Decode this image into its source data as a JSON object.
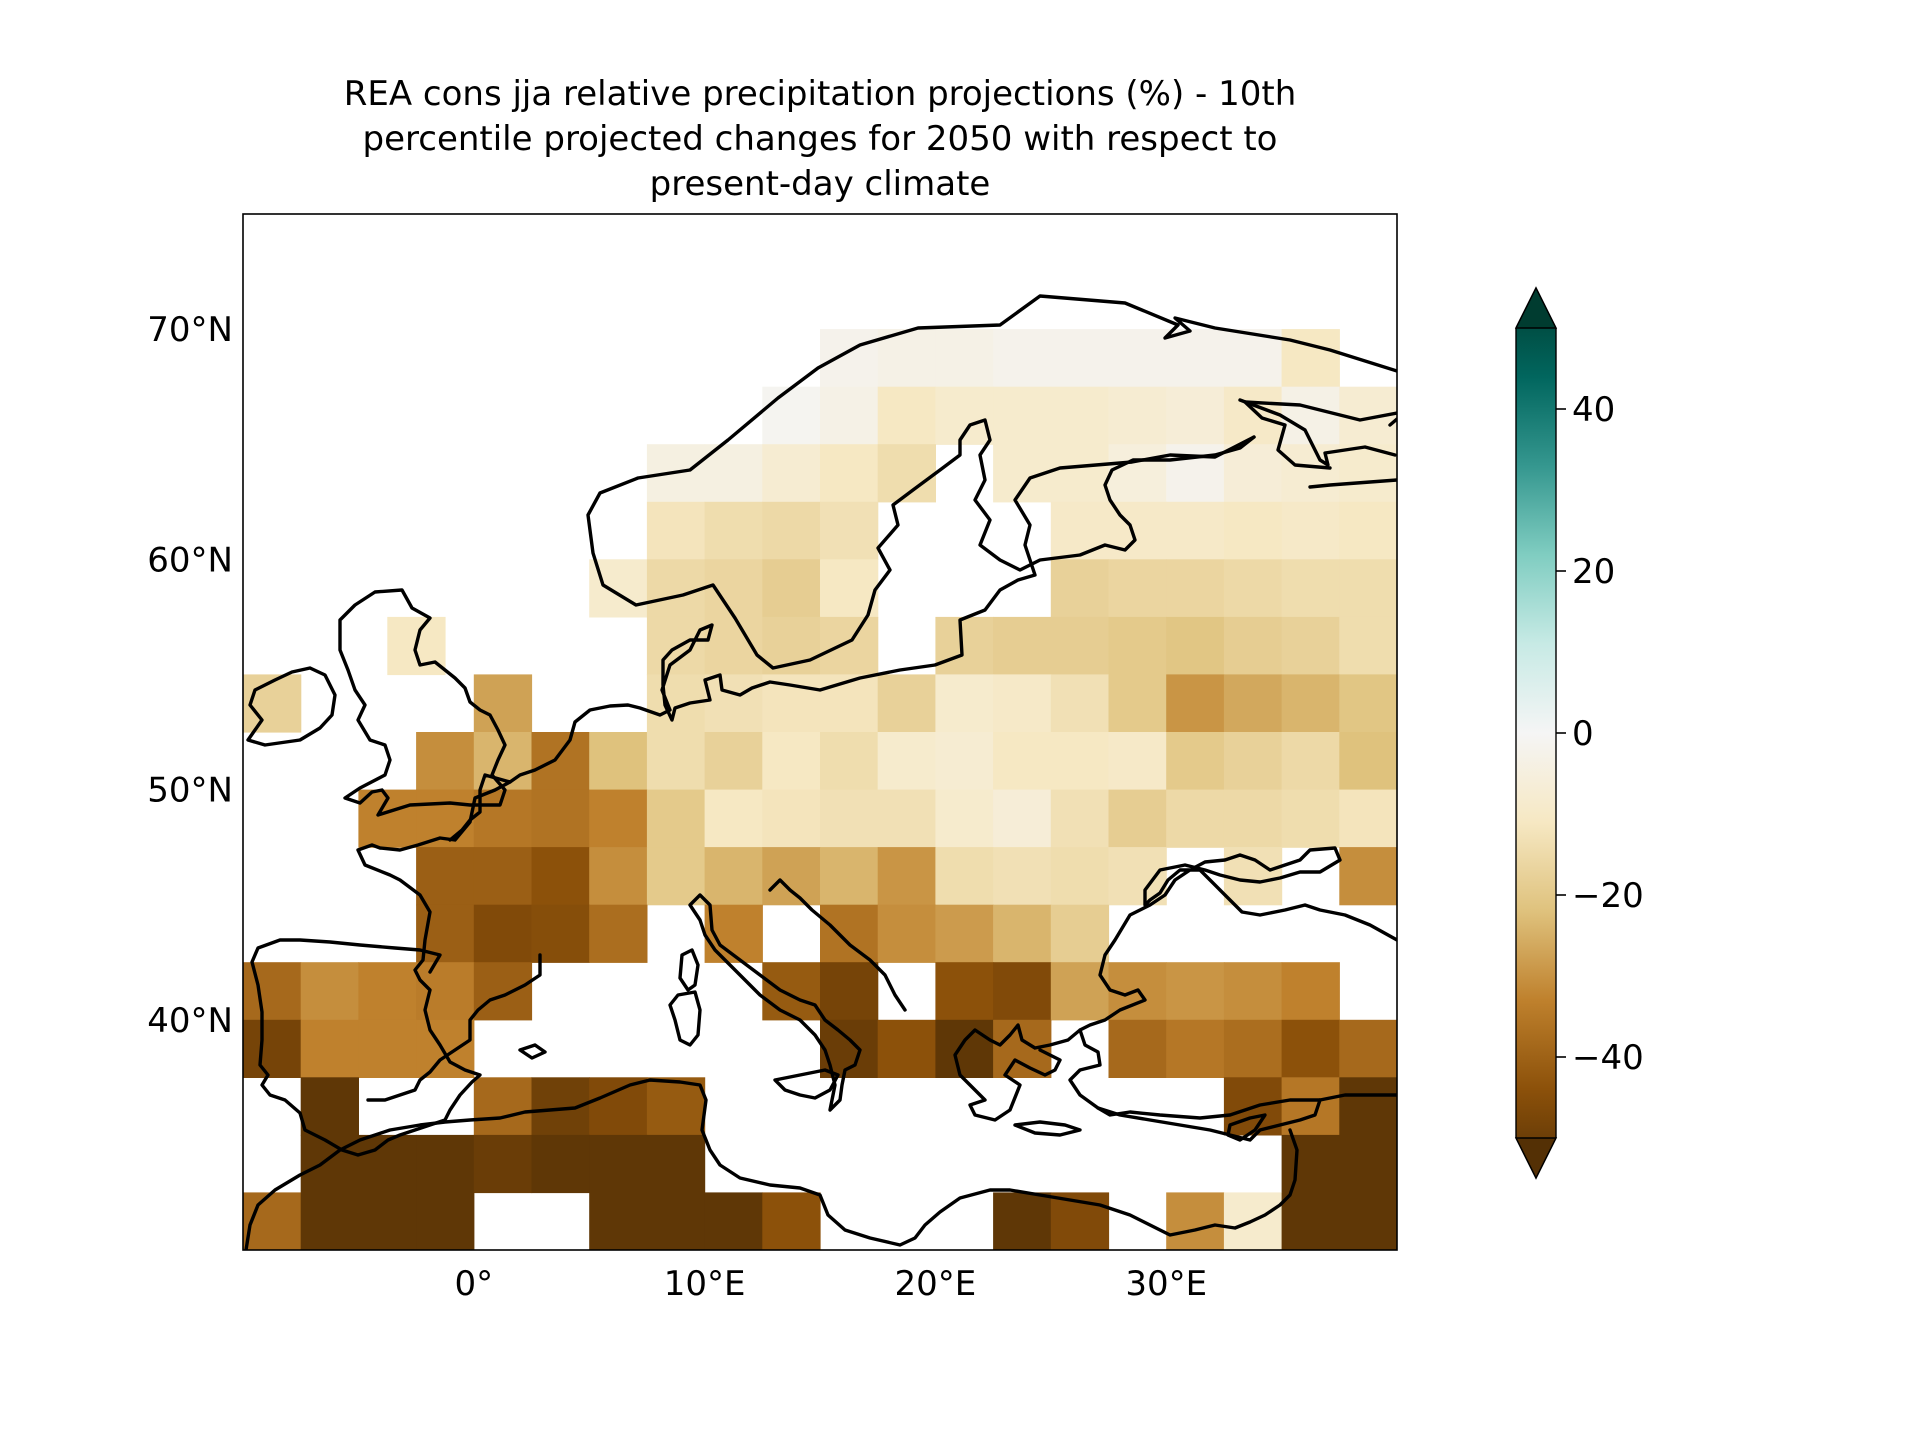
{
  "title": {
    "line1": "REA cons jja relative precipitation projections (%) - 10th",
    "line2": "percentile projected changes for 2050 with respect to",
    "line3": "present-day climate"
  },
  "chart_data": {
    "type": "heatmap",
    "map_extent": {
      "lon": [
        -10,
        40
      ],
      "lat": [
        30,
        75
      ]
    },
    "cell_size_deg": [
      2.5,
      2.5
    ],
    "xticks": [
      {
        "value": 0,
        "label": "0°"
      },
      {
        "value": 10,
        "label": "10°E"
      },
      {
        "value": 20,
        "label": "20°E"
      },
      {
        "value": 30,
        "label": "30°E"
      }
    ],
    "yticks": [
      {
        "value": 40,
        "label": "40°N"
      },
      {
        "value": 50,
        "label": "50°N"
      },
      {
        "value": 60,
        "label": "60°N"
      },
      {
        "value": 70,
        "label": "70°N"
      }
    ],
    "colorbar": {
      "range": [
        -50,
        50
      ],
      "extend": "both",
      "colormap": "BrBG",
      "ticks": [
        {
          "value": 40,
          "label": "40"
        },
        {
          "value": 20,
          "label": "20"
        },
        {
          "value": 0,
          "label": "0"
        },
        {
          "value": -20,
          "label": "−20"
        },
        {
          "value": -40,
          "label": "−40"
        }
      ]
    },
    "note": "Cells listed by south edge latitude; each row gives [lon_west, value%] pairs (estimated).",
    "cells": [
      {
        "lat": 67.5,
        "lon_values": [
          [
            15,
            -2
          ],
          [
            17.5,
            -3
          ],
          [
            20,
            -3
          ],
          [
            22.5,
            -2
          ],
          [
            25,
            -2
          ],
          [
            27.5,
            -2
          ],
          [
            30,
            -2
          ],
          [
            32.5,
            -2
          ],
          [
            35,
            -10
          ]
        ]
      },
      {
        "lat": 65,
        "lon_values": [
          [
            12.5,
            -1
          ],
          [
            15,
            -3
          ],
          [
            17.5,
            -10
          ],
          [
            20,
            -8
          ],
          [
            22.5,
            -8
          ],
          [
            25,
            -8
          ],
          [
            27.5,
            -7
          ],
          [
            30,
            -6
          ],
          [
            32.5,
            -9
          ],
          [
            35,
            -3
          ],
          [
            37.5,
            -7
          ]
        ]
      },
      {
        "lat": 62.5,
        "lon_values": [
          [
            7.5,
            -4
          ],
          [
            10,
            -4
          ],
          [
            12.5,
            -7
          ],
          [
            15,
            -10
          ],
          [
            17.5,
            -13
          ],
          [
            22.5,
            -8
          ],
          [
            25,
            -8
          ],
          [
            27.5,
            -5
          ],
          [
            30,
            -2
          ],
          [
            32.5,
            -6
          ],
          [
            35,
            -7
          ],
          [
            37.5,
            -8
          ]
        ]
      },
      {
        "lat": 60,
        "lon_values": [
          [
            7.5,
            -11
          ],
          [
            10,
            -13
          ],
          [
            12.5,
            -14
          ],
          [
            15,
            -12
          ],
          [
            25,
            -9
          ],
          [
            27.5,
            -9
          ],
          [
            30,
            -9
          ],
          [
            32.5,
            -10
          ],
          [
            35,
            -9
          ],
          [
            37.5,
            -10
          ]
        ]
      },
      {
        "lat": 57.5,
        "lon_values": [
          [
            5,
            -8
          ],
          [
            7.5,
            -14
          ],
          [
            10,
            -15
          ],
          [
            12.5,
            -17
          ],
          [
            15,
            -10
          ],
          [
            25,
            -16
          ],
          [
            27.5,
            -15
          ],
          [
            30,
            -15
          ],
          [
            32.5,
            -14
          ],
          [
            35,
            -13
          ],
          [
            37.5,
            -13
          ]
        ]
      },
      {
        "lat": 55,
        "lon_values": [
          [
            -3.75,
            -10
          ],
          [
            7.5,
            -14
          ],
          [
            10,
            -15
          ],
          [
            12.5,
            -16
          ],
          [
            15,
            -15
          ],
          [
            20,
            -16
          ],
          [
            22.5,
            -17
          ],
          [
            25,
            -17
          ],
          [
            27.5,
            -18
          ],
          [
            30,
            -19
          ],
          [
            32.5,
            -17
          ],
          [
            35,
            -16
          ],
          [
            37.5,
            -13
          ]
        ]
      },
      {
        "lat": 52.5,
        "lon_values": [
          [
            -10,
            -16
          ],
          [
            0,
            -25
          ],
          [
            7.5,
            -13
          ],
          [
            10,
            -12
          ],
          [
            12.5,
            -11
          ],
          [
            15,
            -11
          ],
          [
            17.5,
            -16
          ],
          [
            20,
            -8
          ],
          [
            22.5,
            -9
          ],
          [
            25,
            -12
          ],
          [
            27.5,
            -18
          ],
          [
            30,
            -27
          ],
          [
            32.5,
            -24
          ],
          [
            35,
            -22
          ],
          [
            37.5,
            -19
          ]
        ]
      },
      {
        "lat": 50,
        "lon_values": [
          [
            -2.5,
            -28
          ],
          [
            0,
            -22
          ],
          [
            2.5,
            -33
          ],
          [
            5,
            -20
          ],
          [
            7.5,
            -13
          ],
          [
            10,
            -16
          ],
          [
            12.5,
            -10
          ],
          [
            15,
            -13
          ],
          [
            17.5,
            -8
          ],
          [
            20,
            -7
          ],
          [
            22.5,
            -10
          ],
          [
            25,
            -10
          ],
          [
            27.5,
            -9
          ],
          [
            30,
            -18
          ],
          [
            32.5,
            -16
          ],
          [
            35,
            -14
          ],
          [
            37.5,
            -20
          ]
        ]
      },
      {
        "lat": 47.5,
        "lon_values": [
          [
            -5,
            -30
          ],
          [
            -2.5,
            -30
          ],
          [
            0,
            -32
          ],
          [
            2.5,
            -33
          ],
          [
            5,
            -30
          ],
          [
            7.5,
            -18
          ],
          [
            10,
            -10
          ],
          [
            12.5,
            -11
          ],
          [
            15,
            -12
          ],
          [
            17.5,
            -12
          ],
          [
            20,
            -8
          ],
          [
            22.5,
            -6
          ],
          [
            25,
            -12
          ],
          [
            27.5,
            -17
          ],
          [
            30,
            -14
          ],
          [
            32.5,
            -14
          ],
          [
            35,
            -13
          ],
          [
            37.5,
            -11
          ]
        ]
      },
      {
        "lat": 45,
        "lon_values": [
          [
            -2.5,
            -37
          ],
          [
            0,
            -37
          ],
          [
            2.5,
            -40
          ],
          [
            5,
            -28
          ],
          [
            7.5,
            -18
          ],
          [
            10,
            -22
          ],
          [
            12.5,
            -25
          ],
          [
            15,
            -22
          ],
          [
            17.5,
            -27
          ],
          [
            20,
            -13
          ],
          [
            22.5,
            -12
          ],
          [
            25,
            -13
          ],
          [
            27.5,
            -12
          ],
          [
            32.5,
            -12
          ],
          [
            37.5,
            -28
          ]
        ]
      },
      {
        "lat": 42.5,
        "lon_values": [
          [
            -2.5,
            -37
          ],
          [
            0,
            -42
          ],
          [
            2.5,
            -41
          ],
          [
            5,
            -34
          ],
          [
            10,
            -30
          ],
          [
            15,
            -33
          ],
          [
            17.5,
            -28
          ],
          [
            20,
            -26
          ],
          [
            22.5,
            -22
          ],
          [
            25,
            -17
          ]
        ]
      },
      {
        "lat": 40,
        "lon_values": [
          [
            -10,
            -35
          ],
          [
            -7.5,
            -28
          ],
          [
            -5,
            -30
          ],
          [
            -2.5,
            -31
          ],
          [
            0,
            -37
          ],
          [
            12.5,
            -38
          ],
          [
            15,
            -44
          ],
          [
            20,
            -40
          ],
          [
            22.5,
            -42
          ],
          [
            25,
            -25
          ],
          [
            27.5,
            -28
          ],
          [
            30,
            -27
          ],
          [
            32.5,
            -28
          ],
          [
            35,
            -30
          ]
        ]
      },
      {
        "lat": 37.5,
        "lon_values": [
          [
            -10,
            -44
          ],
          [
            -7.5,
            -30
          ],
          [
            -5,
            -30
          ],
          [
            -2.5,
            -30
          ],
          [
            15,
            -46
          ],
          [
            17.5,
            -40
          ],
          [
            20,
            -48
          ],
          [
            22.5,
            -35
          ],
          [
            27.5,
            -35
          ],
          [
            30,
            -32
          ],
          [
            32.5,
            -34
          ],
          [
            35,
            -40
          ],
          [
            37.5,
            -35
          ]
        ]
      },
      {
        "lat": 35,
        "lon_values": [
          [
            -7.5,
            -48
          ],
          [
            0,
            -35
          ],
          [
            2.5,
            -45
          ],
          [
            5,
            -42
          ],
          [
            7.5,
            -38
          ],
          [
            32.5,
            -42
          ],
          [
            35,
            -32
          ],
          [
            37.5,
            -48
          ]
        ]
      },
      {
        "lat": 32.5,
        "lon_values": [
          [
            -7.5,
            -48
          ],
          [
            -5,
            -48
          ],
          [
            -2.5,
            -48
          ],
          [
            0,
            -46
          ],
          [
            2.5,
            -48
          ],
          [
            5,
            -48
          ],
          [
            7.5,
            -48
          ],
          [
            35,
            -48
          ],
          [
            37.5,
            -48
          ]
        ]
      },
      {
        "lat": 30,
        "lon_values": [
          [
            -10,
            -35
          ],
          [
            -7.5,
            -48
          ],
          [
            -5,
            -48
          ],
          [
            -2.5,
            -48
          ],
          [
            5,
            -48
          ],
          [
            7.5,
            -48
          ],
          [
            10,
            -48
          ],
          [
            12.5,
            -40
          ],
          [
            22.5,
            -48
          ],
          [
            25,
            -42
          ],
          [
            30,
            -28
          ],
          [
            32.5,
            -8
          ],
          [
            35,
            -48
          ],
          [
            37.5,
            -48
          ]
        ]
      }
    ]
  },
  "colors": {
    "cmap_stops": [
      "#543005",
      "#8c510a",
      "#bf812d",
      "#dfc27d",
      "#f6e8c3",
      "#f5f5f5",
      "#c7eae5",
      "#80cdc1",
      "#35978f",
      "#01665e",
      "#003c30"
    ],
    "coastline": "#000000"
  }
}
